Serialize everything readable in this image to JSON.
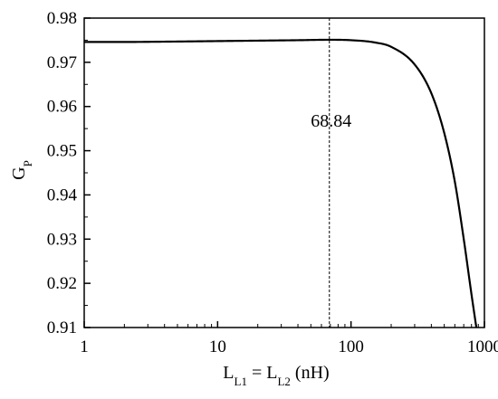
{
  "chart_data": {
    "type": "line",
    "x_scale": "log",
    "xlim": [
      1,
      1000
    ],
    "ylim": [
      0.91,
      0.98
    ],
    "x_ticks": [
      1,
      10,
      100,
      1000
    ],
    "x_tick_labels": [
      "1",
      "10",
      "100",
      "1000"
    ],
    "y_ticks": [
      0.91,
      0.92,
      0.93,
      0.94,
      0.95,
      0.96,
      0.97,
      0.98
    ],
    "y_tick_labels": [
      "0.91",
      "0.92",
      "0.93",
      "0.94",
      "0.95",
      "0.96",
      "0.97",
      "0.98"
    ],
    "xlabel": {
      "parts": [
        {
          "text": "L",
          "sub": false
        },
        {
          "text": "L1",
          "sub": true
        },
        {
          "text": " = L",
          "sub": false
        },
        {
          "text": "L2",
          "sub": true
        },
        {
          "text": " (nH)",
          "sub": false
        }
      ]
    },
    "ylabel": {
      "parts": [
        {
          "text": "G",
          "sub": false
        },
        {
          "text": "P",
          "sub": true
        }
      ]
    },
    "grid": false,
    "series": [
      {
        "color": "#000000",
        "x": [
          1,
          2,
          5,
          10,
          20,
          40,
          68.84,
          100,
          150,
          200,
          300,
          400,
          500,
          600,
          700,
          800,
          870
        ],
        "y": [
          0.9746,
          0.9746,
          0.9747,
          0.9748,
          0.9749,
          0.975,
          0.9751,
          0.975,
          0.9745,
          0.9735,
          0.9695,
          0.963,
          0.954,
          0.943,
          0.93,
          0.9175,
          0.91
        ]
      }
    ],
    "annotations": [
      {
        "type": "vline",
        "x": 68.84,
        "style": "dashed",
        "label": "68.84"
      }
    ]
  }
}
